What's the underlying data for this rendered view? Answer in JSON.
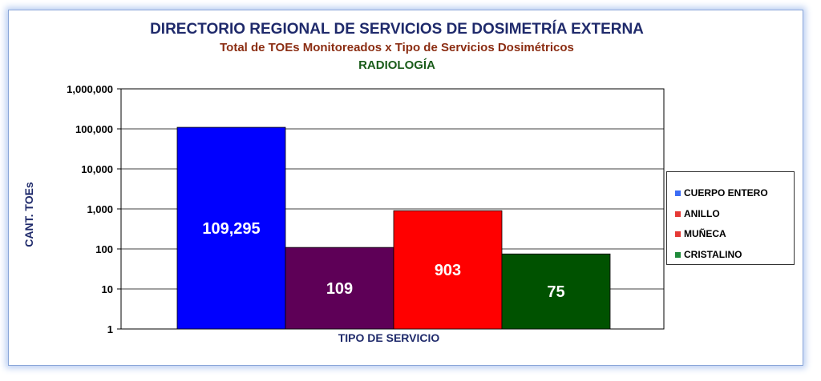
{
  "chart_data": {
    "type": "bar",
    "title": "DIRECTORIO REGIONAL DE SERVICIOS DE DOSIMETRÍA EXTERNA",
    "subtitle": "Total de TOEs Monitoreados x Tipo de Servicios Dosimétricos",
    "subtitle2": "RADIOLOGÍA",
    "xlabel": "TIPO DE SERVICIO",
    "ylabel": "CANT. TOEs",
    "yscale": "log",
    "ylim": [
      1,
      1000000
    ],
    "yticks": [
      {
        "value": 1,
        "label": "1"
      },
      {
        "value": 10,
        "label": "10"
      },
      {
        "value": 100,
        "label": "100"
      },
      {
        "value": 1000,
        "label": "1,000"
      },
      {
        "value": 10000,
        "label": "10,000"
      },
      {
        "value": 100000,
        "label": "100,000"
      },
      {
        "value": 1000000,
        "label": "1,000,000"
      }
    ],
    "grid": true,
    "legend_position": "right",
    "series": [
      {
        "name": "CUERPO ENTERO",
        "value": 109295,
        "label": "109,295",
        "color": "#0000ff"
      },
      {
        "name": "ANILLO",
        "value": 109,
        "label": "109",
        "color": "#5e0057"
      },
      {
        "name": "MUÑECA",
        "value": 903,
        "label": "903",
        "color": "#ff0000"
      },
      {
        "name": "CRISTALINO",
        "value": 75,
        "label": "75",
        "color": "#005200"
      }
    ],
    "legend_colors": [
      "#3b6cf5",
      "#e53935",
      "#e53935",
      "#1f8a3a"
    ]
  }
}
